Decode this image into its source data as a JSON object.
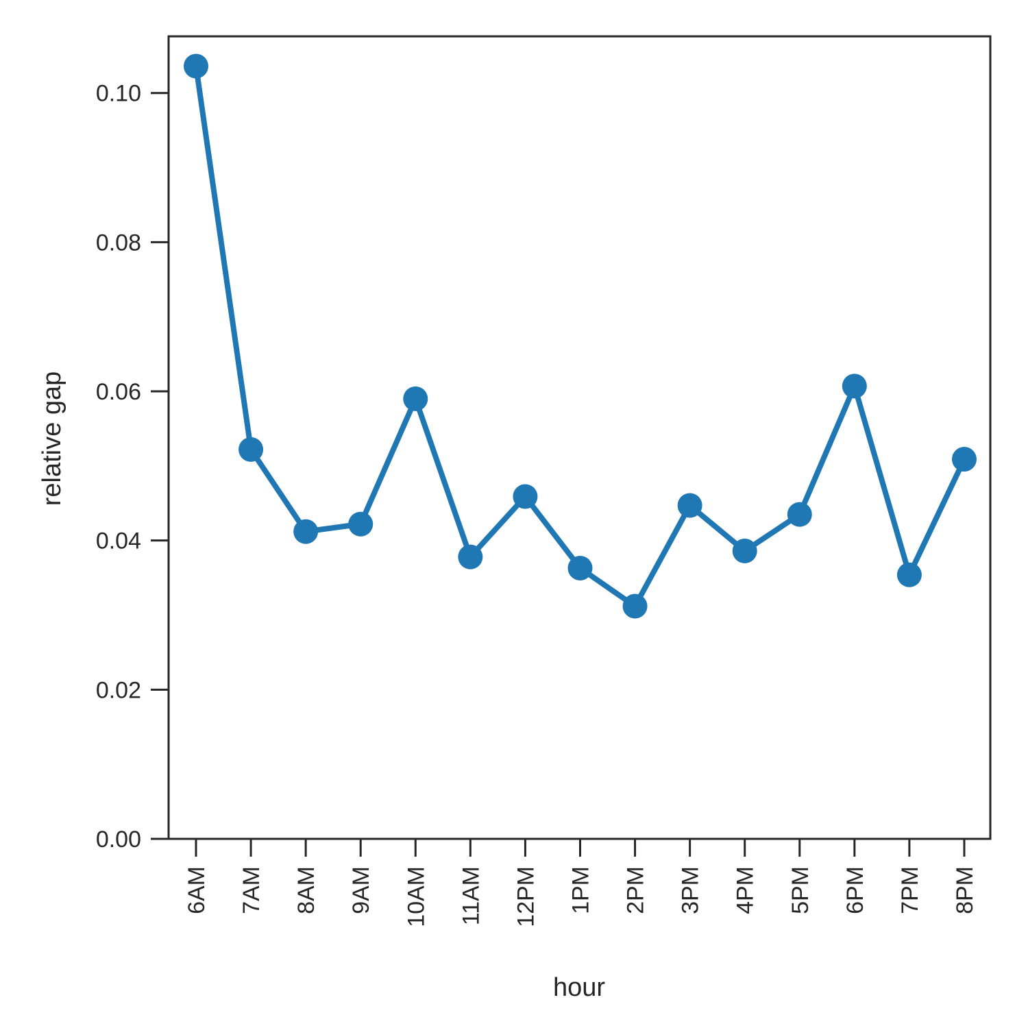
{
  "chart_data": {
    "type": "line",
    "title": "",
    "xlabel": "hour",
    "ylabel": "relative gap",
    "categories": [
      "6AM",
      "7AM",
      "8AM",
      "9AM",
      "10AM",
      "11AM",
      "12PM",
      "1PM",
      "2PM",
      "3PM",
      "4PM",
      "5PM",
      "6PM",
      "7PM",
      "8PM"
    ],
    "series": [
      {
        "values": [
          0.1036,
          0.0522,
          0.0412,
          0.0422,
          0.059,
          0.0378,
          0.0459,
          0.0363,
          0.0312,
          0.0447,
          0.0386,
          0.0435,
          0.0607,
          0.0354,
          0.0509
        ],
        "color": "#1f77b4",
        "marker": "circle"
      }
    ],
    "yticks": [
      0.0,
      0.02,
      0.04,
      0.06,
      0.08,
      0.1
    ],
    "ytick_labels": [
      "0.00",
      "0.02",
      "0.04",
      "0.06",
      "0.08",
      "0.10"
    ],
    "ylim": [
      0.0,
      0.1076
    ],
    "grid": false,
    "legend": "none"
  }
}
